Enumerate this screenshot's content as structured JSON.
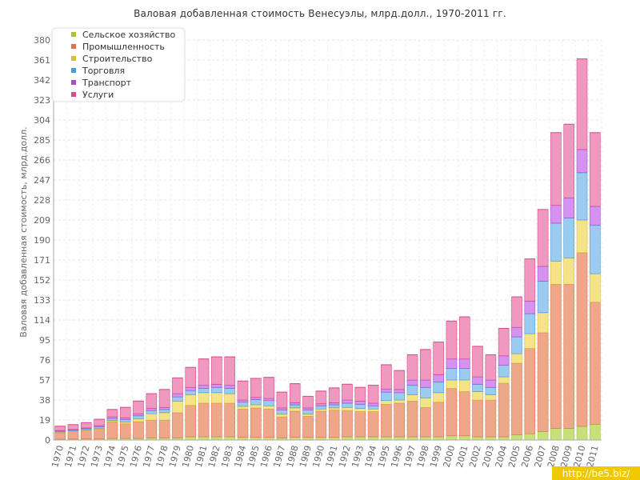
{
  "chart_data": {
    "type": "bar",
    "stacked": true,
    "title": "Валовая добавленная стоимость Венесуэлы, млрд.долл., 1970-2011 гг.",
    "ylabel": "Валовая добавленная стоимость, млрд.долл.",
    "xlabel": "",
    "ylim": [
      0,
      380
    ],
    "yticks": [
      "0",
      "19",
      "38",
      "57",
      "76",
      "95",
      "114",
      "133",
      "152",
      "171",
      "190",
      "209",
      "228",
      "247",
      "266",
      "285",
      "304",
      "323",
      "342",
      "361",
      "380"
    ],
    "grid": true,
    "legend_position": "top-left",
    "categories": [
      "1970",
      "1971",
      "1972",
      "1973",
      "1974",
      "1975",
      "1976",
      "1977",
      "1978",
      "1979",
      "1980",
      "1981",
      "1982",
      "1983",
      "1984",
      "1985",
      "1986",
      "1987",
      "1988",
      "1989",
      "1990",
      "1991",
      "1992",
      "1993",
      "1994",
      "1995",
      "1996",
      "1997",
      "1998",
      "1999",
      "2000",
      "2001",
      "2002",
      "2003",
      "2004",
      "2005",
      "2006",
      "2007",
      "2008",
      "2009",
      "2010",
      "2011"
    ],
    "series": [
      {
        "name": "Сельское хозяйство",
        "color": "#c8e07a",
        "edge": "#a6c43c",
        "values": [
          0.8,
          0.9,
          1,
          1,
          1.5,
          1.5,
          1.5,
          2,
          2,
          2,
          3,
          3,
          3,
          3,
          2.5,
          2.5,
          2.5,
          2,
          2.5,
          2.5,
          2.5,
          2.5,
          3,
          3,
          3,
          3,
          3,
          3,
          3,
          3,
          4,
          4,
          3,
          3,
          3,
          5,
          6,
          8,
          11,
          11,
          13,
          15
        ]
      },
      {
        "name": "Промышленность",
        "color": "#efa78a",
        "edge": "#d77555",
        "values": [
          6.2,
          7.1,
          8,
          9.5,
          16,
          14,
          16,
          17,
          17,
          24,
          30,
          32,
          32,
          32,
          27,
          28,
          27,
          20,
          25,
          20,
          25,
          26,
          25,
          24,
          24,
          31,
          32,
          34,
          28,
          33,
          45,
          42,
          35,
          35,
          51,
          68,
          81,
          94,
          137,
          137,
          165,
          116
        ]
      },
      {
        "name": "Строительство",
        "color": "#f5e38a",
        "edge": "#d8bd35",
        "values": [
          0.6,
          0.6,
          0.7,
          0.7,
          1,
          1.5,
          2.5,
          6,
          7,
          11,
          10,
          10,
          10,
          9,
          2.5,
          3,
          3,
          2.5,
          3,
          2,
          2,
          2,
          3,
          3,
          2.5,
          3.5,
          3,
          6,
          9,
          9,
          8,
          11,
          8,
          5,
          6,
          9,
          14,
          19,
          22,
          25,
          31,
          27
        ]
      },
      {
        "name": "Торговля",
        "color": "#9ccbf0",
        "edge": "#4a9ad8",
        "values": [
          0.8,
          0.8,
          1,
          1.5,
          2,
          2.5,
          3,
          3,
          3,
          4,
          4,
          4,
          5,
          5,
          4,
          5,
          5,
          4,
          3,
          4,
          3,
          3,
          4,
          4,
          3,
          8,
          7,
          9,
          10,
          10,
          11,
          11,
          7,
          7,
          11,
          16,
          19,
          30,
          36,
          38,
          45,
          46
        ]
      },
      {
        "name": "Транспорт",
        "color": "#d592ee",
        "edge": "#a34fc8",
        "values": [
          0.7,
          0.7,
          0.8,
          1,
          1.5,
          1.5,
          2,
          2,
          2,
          3,
          3,
          3,
          3,
          3,
          2,
          2,
          2,
          2,
          2,
          2,
          2,
          2,
          3,
          3,
          2.5,
          3,
          3,
          5,
          7,
          7,
          9,
          9,
          7,
          7,
          9,
          9,
          12,
          14,
          17,
          19,
          22,
          18
        ]
      },
      {
        "name": "Услуги",
        "color": "#ef98c0",
        "edge": "#d84b8b",
        "values": [
          4,
          4.5,
          5,
          6,
          7,
          10,
          12,
          14,
          17,
          15,
          19,
          25,
          26,
          27,
          18,
          18,
          20,
          15,
          18,
          11,
          12,
          14,
          15,
          13,
          17,
          23,
          18,
          24,
          29,
          31,
          36,
          40,
          29,
          24,
          26,
          29,
          40,
          54,
          69,
          70,
          86,
          70
        ]
      }
    ]
  },
  "watermark": "http://be5.biz/"
}
